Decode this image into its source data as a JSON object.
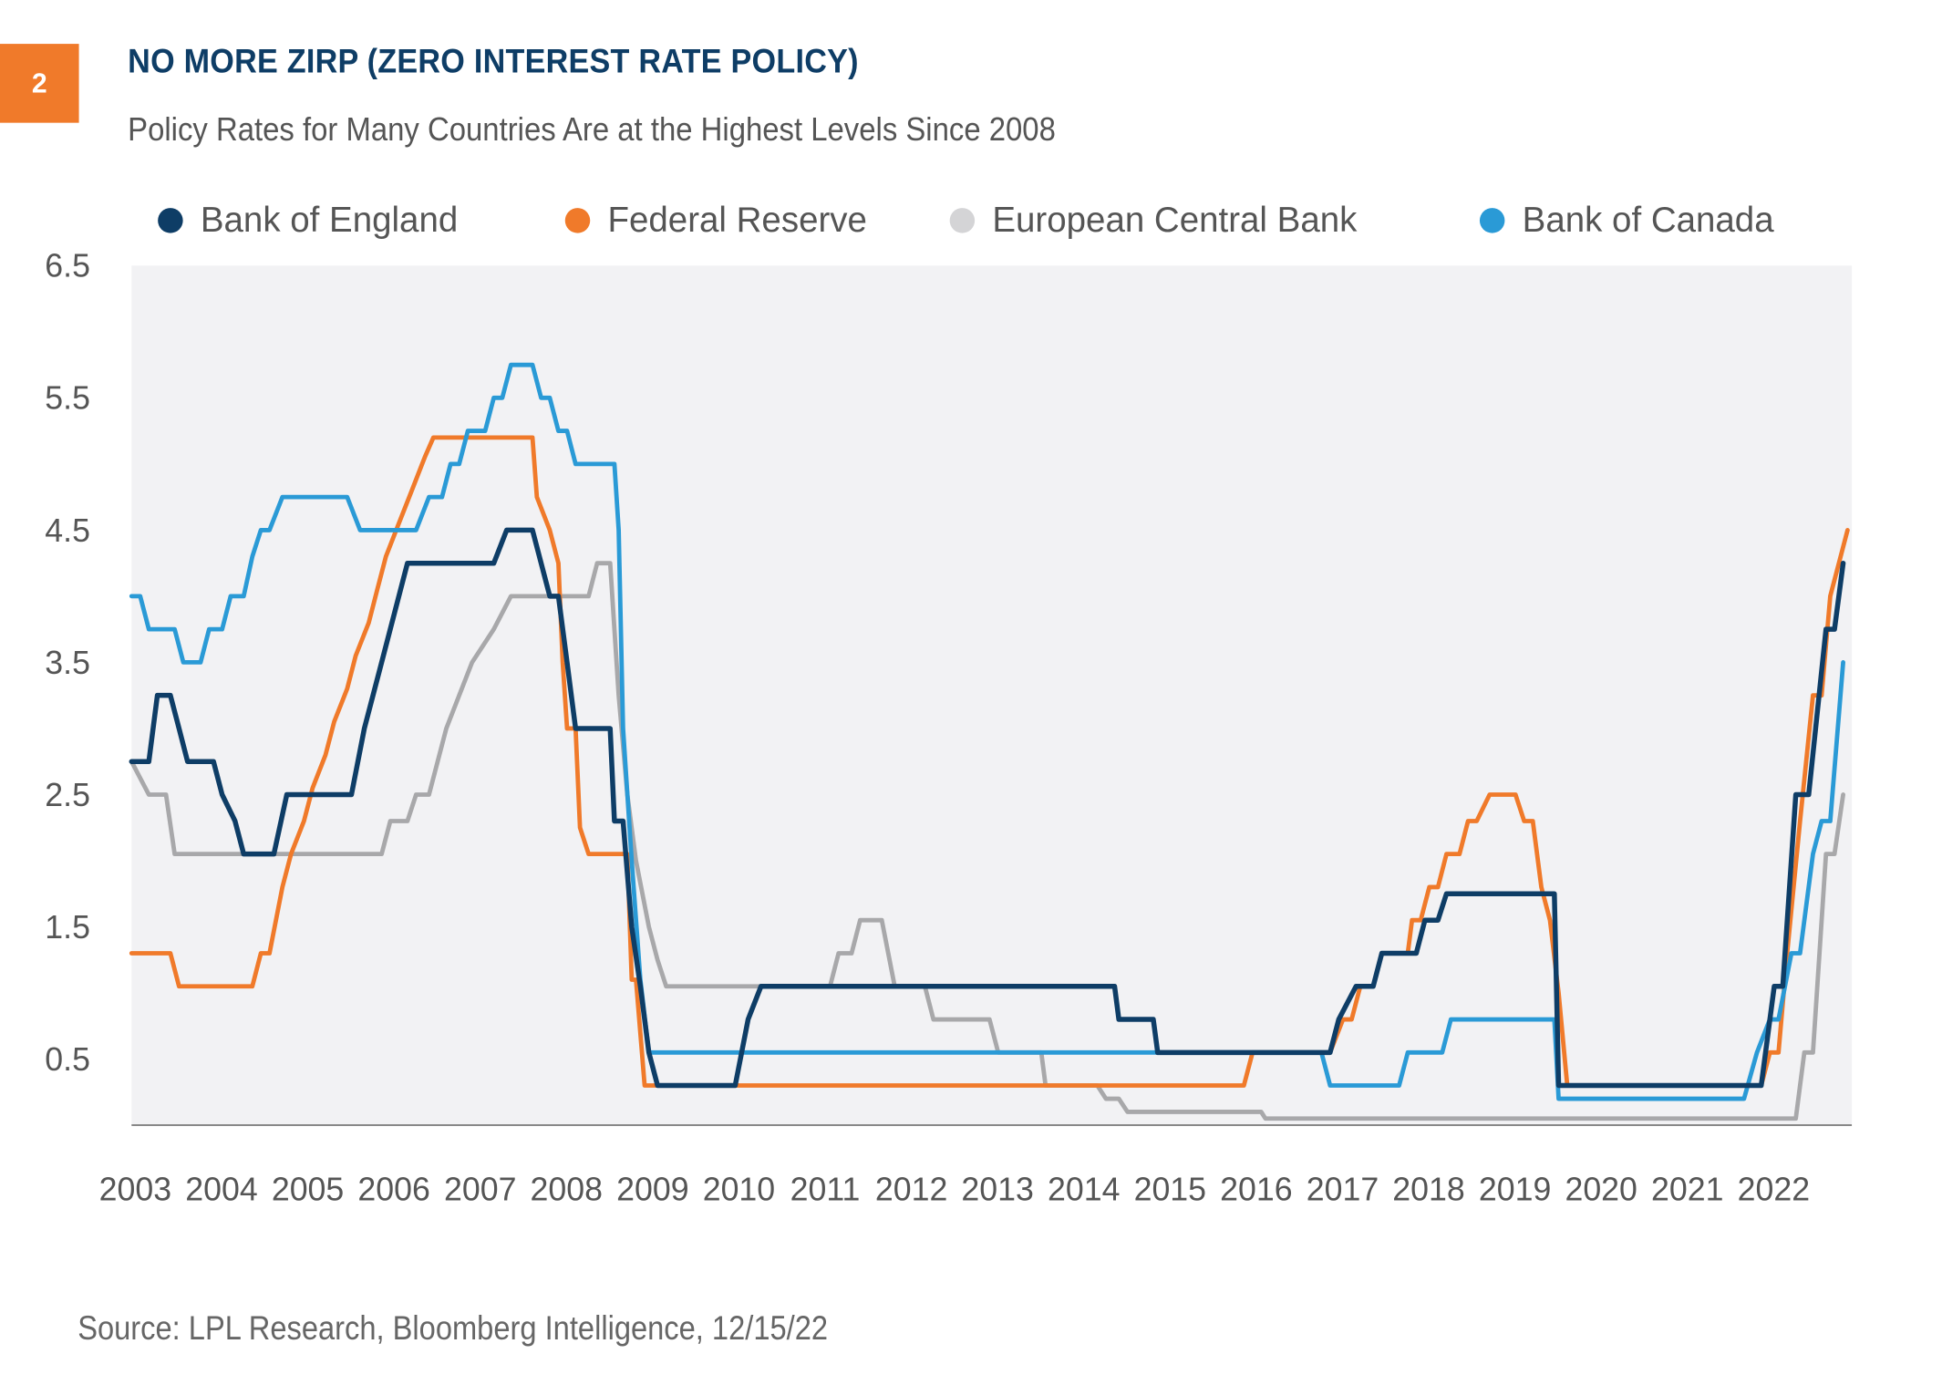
{
  "badge": "2",
  "title": "NO MORE ZIRP (ZERO INTEREST RATE POLICY)",
  "subtitle": "Policy Rates for Many Countries Are at the Highest Levels Since 2008",
  "source": "Source: LPL Research, Bloomberg Intelligence,  12/15/22",
  "colors": {
    "badge": "#f07a2a",
    "title": "#0e3d66",
    "plot_bg": "#f2f2f4",
    "bank_of_england": "#0e3d66",
    "federal_reserve": "#f07a2a",
    "ecb": "#a8a8aa",
    "bank_of_canada": "#2a9ad6"
  },
  "chart_data": {
    "type": "line",
    "title": "NO MORE ZIRP (ZERO INTEREST RATE POLICY)",
    "subtitle": "Policy Rates for Many Countries Are at the Highest Levels Since 2008",
    "xlabel": "",
    "ylabel": "",
    "xlim": [
      2003.0,
      2022.95
    ],
    "ylim": [
      0.0,
      6.5
    ],
    "x_ticks": [
      "2003",
      "2004",
      "2005",
      "2006",
      "2007",
      "2008",
      "2009",
      "2010",
      "2011",
      "2012",
      "2013",
      "2014",
      "2015",
      "2016",
      "2017",
      "2018",
      "2019",
      "2020",
      "2021",
      "2022"
    ],
    "y_ticks": [
      "6.5",
      "5.5",
      "4.5",
      "3.5",
      "2.5",
      "1.5",
      "0.5"
    ],
    "y_tick_values": [
      6.5,
      5.5,
      4.5,
      3.5,
      2.5,
      1.5,
      0.5
    ],
    "grid": false,
    "legend_position": "top",
    "legend": [
      "Bank of England",
      "Federal Reserve",
      "European Central Bank",
      "Bank of Canada"
    ],
    "series": [
      {
        "name": "Bank of England",
        "key": "bank_of_england",
        "points": [
          [
            2003.0,
            2.75
          ],
          [
            2003.2,
            2.75
          ],
          [
            2003.3,
            3.25
          ],
          [
            2003.45,
            3.25
          ],
          [
            2003.55,
            3.0
          ],
          [
            2003.65,
            2.75
          ],
          [
            2003.95,
            2.75
          ],
          [
            2004.05,
            2.5
          ],
          [
            2004.2,
            2.3
          ],
          [
            2004.3,
            2.05
          ],
          [
            2004.65,
            2.05
          ],
          [
            2004.8,
            2.5
          ],
          [
            2005.55,
            2.5
          ],
          [
            2005.7,
            3.0
          ],
          [
            2005.9,
            3.5
          ],
          [
            2006.2,
            4.25
          ],
          [
            2007.2,
            4.25
          ],
          [
            2007.35,
            4.5
          ],
          [
            2007.65,
            4.5
          ],
          [
            2007.85,
            4.0
          ],
          [
            2007.95,
            4.0
          ],
          [
            2008.05,
            3.5
          ],
          [
            2008.15,
            3.0
          ],
          [
            2008.55,
            3.0
          ],
          [
            2008.6,
            2.3
          ],
          [
            2008.7,
            2.3
          ],
          [
            2008.8,
            1.5
          ],
          [
            2008.9,
            1.05
          ],
          [
            2009.0,
            0.55
          ],
          [
            2009.1,
            0.3
          ],
          [
            2010.0,
            0.3
          ],
          [
            2010.15,
            0.8
          ],
          [
            2010.3,
            1.05
          ],
          [
            2014.4,
            1.05
          ],
          [
            2014.45,
            0.8
          ],
          [
            2014.85,
            0.8
          ],
          [
            2014.9,
            0.55
          ],
          [
            2016.4,
            0.55
          ],
          [
            2016.9,
            0.55
          ],
          [
            2017.0,
            0.8
          ],
          [
            2017.2,
            1.05
          ],
          [
            2017.4,
            1.05
          ],
          [
            2017.5,
            1.3
          ],
          [
            2017.9,
            1.3
          ],
          [
            2018.0,
            1.55
          ],
          [
            2018.15,
            1.55
          ],
          [
            2018.25,
            1.75
          ],
          [
            2019.5,
            1.75
          ],
          [
            2019.55,
            0.3
          ],
          [
            2021.9,
            0.3
          ],
          [
            2022.05,
            1.05
          ],
          [
            2022.15,
            1.05
          ],
          [
            2022.3,
            2.5
          ],
          [
            2022.45,
            2.5
          ],
          [
            2022.65,
            3.75
          ],
          [
            2022.75,
            3.75
          ],
          [
            2022.85,
            4.25
          ]
        ]
      },
      {
        "name": "Federal Reserve",
        "key": "federal_reserve",
        "points": [
          [
            2003.0,
            1.3
          ],
          [
            2003.45,
            1.3
          ],
          [
            2003.55,
            1.05
          ],
          [
            2004.4,
            1.05
          ],
          [
            2004.5,
            1.3
          ],
          [
            2004.6,
            1.3
          ],
          [
            2004.75,
            1.8
          ],
          [
            2004.85,
            2.05
          ],
          [
            2005.0,
            2.3
          ],
          [
            2005.1,
            2.55
          ],
          [
            2005.25,
            2.8
          ],
          [
            2005.35,
            3.05
          ],
          [
            2005.5,
            3.3
          ],
          [
            2005.6,
            3.55
          ],
          [
            2005.75,
            3.8
          ],
          [
            2005.85,
            4.05
          ],
          [
            2005.95,
            4.3
          ],
          [
            2006.1,
            4.55
          ],
          [
            2006.25,
            4.8
          ],
          [
            2006.4,
            5.05
          ],
          [
            2006.5,
            5.2
          ],
          [
            2007.65,
            5.2
          ],
          [
            2007.7,
            4.75
          ],
          [
            2007.85,
            4.5
          ],
          [
            2007.95,
            4.25
          ],
          [
            2008.0,
            3.5
          ],
          [
            2008.05,
            3.0
          ],
          [
            2008.15,
            3.0
          ],
          [
            2008.2,
            2.25
          ],
          [
            2008.3,
            2.05
          ],
          [
            2008.75,
            2.05
          ],
          [
            2008.8,
            1.1
          ],
          [
            2008.85,
            1.1
          ],
          [
            2008.95,
            0.3
          ],
          [
            2015.9,
            0.3
          ],
          [
            2016.0,
            0.55
          ],
          [
            2016.9,
            0.55
          ],
          [
            2017.05,
            0.8
          ],
          [
            2017.15,
            0.8
          ],
          [
            2017.25,
            1.05
          ],
          [
            2017.4,
            1.05
          ],
          [
            2017.5,
            1.3
          ],
          [
            2017.8,
            1.3
          ],
          [
            2017.85,
            1.55
          ],
          [
            2017.95,
            1.55
          ],
          [
            2018.05,
            1.8
          ],
          [
            2018.15,
            1.8
          ],
          [
            2018.25,
            2.05
          ],
          [
            2018.4,
            2.05
          ],
          [
            2018.5,
            2.3
          ],
          [
            2018.6,
            2.3
          ],
          [
            2018.75,
            2.5
          ],
          [
            2019.05,
            2.5
          ],
          [
            2019.15,
            2.3
          ],
          [
            2019.25,
            2.3
          ],
          [
            2019.35,
            1.8
          ],
          [
            2019.45,
            1.55
          ],
          [
            2019.55,
            1.0
          ],
          [
            2019.65,
            0.3
          ],
          [
            2021.9,
            0.3
          ],
          [
            2022.0,
            0.55
          ],
          [
            2022.1,
            0.55
          ],
          [
            2022.2,
            1.3
          ],
          [
            2022.35,
            2.3
          ],
          [
            2022.5,
            3.25
          ],
          [
            2022.6,
            3.25
          ],
          [
            2022.7,
            4.0
          ],
          [
            2022.9,
            4.5
          ]
        ]
      },
      {
        "name": "European Central Bank",
        "key": "ecb",
        "points": [
          [
            2003.0,
            2.75
          ],
          [
            2003.2,
            2.5
          ],
          [
            2003.4,
            2.5
          ],
          [
            2003.5,
            2.05
          ],
          [
            2005.9,
            2.05
          ],
          [
            2006.0,
            2.3
          ],
          [
            2006.2,
            2.3
          ],
          [
            2006.3,
            2.5
          ],
          [
            2006.45,
            2.5
          ],
          [
            2006.55,
            2.75
          ],
          [
            2006.65,
            3.0
          ],
          [
            2006.8,
            3.25
          ],
          [
            2006.95,
            3.5
          ],
          [
            2007.2,
            3.75
          ],
          [
            2007.4,
            4.0
          ],
          [
            2008.3,
            4.0
          ],
          [
            2008.4,
            4.25
          ],
          [
            2008.55,
            4.25
          ],
          [
            2008.65,
            3.25
          ],
          [
            2008.75,
            2.5
          ],
          [
            2008.85,
            2.0
          ],
          [
            2009.0,
            1.5
          ],
          [
            2009.1,
            1.25
          ],
          [
            2009.2,
            1.05
          ],
          [
            2011.1,
            1.05
          ],
          [
            2011.2,
            1.3
          ],
          [
            2011.35,
            1.3
          ],
          [
            2011.45,
            1.55
          ],
          [
            2011.7,
            1.55
          ],
          [
            2011.85,
            1.05
          ],
          [
            2012.2,
            1.05
          ],
          [
            2012.3,
            0.8
          ],
          [
            2012.95,
            0.8
          ],
          [
            2013.05,
            0.55
          ],
          [
            2013.55,
            0.55
          ],
          [
            2013.6,
            0.3
          ],
          [
            2014.2,
            0.3
          ],
          [
            2014.3,
            0.2
          ],
          [
            2014.45,
            0.2
          ],
          [
            2014.55,
            0.1
          ],
          [
            2016.1,
            0.1
          ],
          [
            2016.15,
            0.05
          ],
          [
            2022.3,
            0.05
          ],
          [
            2022.4,
            0.55
          ],
          [
            2022.5,
            0.55
          ],
          [
            2022.65,
            2.05
          ],
          [
            2022.75,
            2.05
          ],
          [
            2022.85,
            2.5
          ]
        ]
      },
      {
        "name": "Bank of Canada",
        "key": "bank_of_canada",
        "points": [
          [
            2003.0,
            4.0
          ],
          [
            2003.1,
            4.0
          ],
          [
            2003.2,
            3.75
          ],
          [
            2003.5,
            3.75
          ],
          [
            2003.6,
            3.5
          ],
          [
            2003.8,
            3.5
          ],
          [
            2003.9,
            3.75
          ],
          [
            2004.05,
            3.75
          ],
          [
            2004.15,
            4.0
          ],
          [
            2004.3,
            4.0
          ],
          [
            2004.4,
            4.3
          ],
          [
            2004.5,
            4.5
          ],
          [
            2004.6,
            4.5
          ],
          [
            2004.75,
            4.75
          ],
          [
            2005.5,
            4.75
          ],
          [
            2005.65,
            4.5
          ],
          [
            2006.3,
            4.5
          ],
          [
            2006.45,
            4.75
          ],
          [
            2006.6,
            4.75
          ],
          [
            2006.7,
            5.0
          ],
          [
            2006.8,
            5.0
          ],
          [
            2006.9,
            5.25
          ],
          [
            2007.1,
            5.25
          ],
          [
            2007.2,
            5.5
          ],
          [
            2007.3,
            5.5
          ],
          [
            2007.4,
            5.75
          ],
          [
            2007.65,
            5.75
          ],
          [
            2007.75,
            5.5
          ],
          [
            2007.85,
            5.5
          ],
          [
            2007.95,
            5.25
          ],
          [
            2008.05,
            5.25
          ],
          [
            2008.15,
            5.0
          ],
          [
            2008.6,
            5.0
          ],
          [
            2008.65,
            4.5
          ],
          [
            2008.7,
            3.0
          ],
          [
            2008.8,
            2.0
          ],
          [
            2008.9,
            1.1
          ],
          [
            2009.0,
            0.55
          ],
          [
            2015.9,
            0.55
          ],
          [
            2016.8,
            0.55
          ],
          [
            2016.9,
            0.3
          ],
          [
            2017.7,
            0.3
          ],
          [
            2017.8,
            0.55
          ],
          [
            2018.2,
            0.55
          ],
          [
            2018.3,
            0.8
          ],
          [
            2019.5,
            0.8
          ],
          [
            2019.55,
            0.2
          ],
          [
            2021.7,
            0.2
          ],
          [
            2021.85,
            0.55
          ],
          [
            2022.0,
            0.8
          ],
          [
            2022.1,
            0.8
          ],
          [
            2022.25,
            1.3
          ],
          [
            2022.35,
            1.3
          ],
          [
            2022.5,
            2.05
          ],
          [
            2022.6,
            2.3
          ],
          [
            2022.7,
            2.3
          ],
          [
            2022.85,
            3.5
          ]
        ]
      }
    ]
  }
}
